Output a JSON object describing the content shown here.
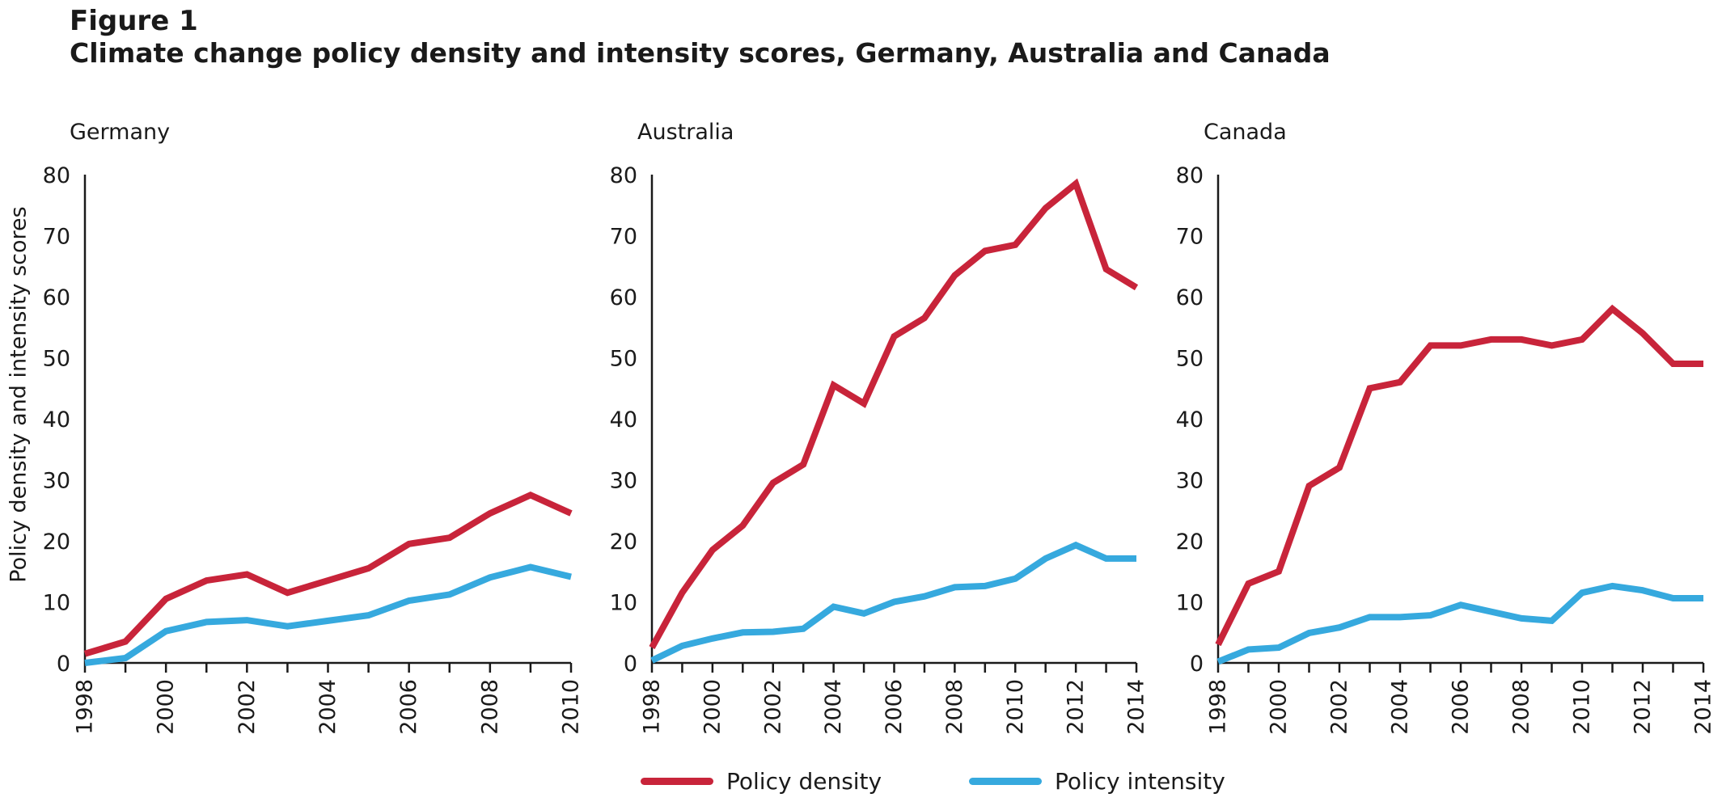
{
  "figure": {
    "label": "Figure 1",
    "title": "Climate change policy density and intensity scores, Germany, Australia and Canada"
  },
  "colors": {
    "density": "#c8243a",
    "intensity": "#36a9de",
    "axis": "#1a1a1a"
  },
  "chart_data": [
    {
      "type": "line",
      "title": "Germany",
      "ylabel": "Policy density and intensity scores",
      "xlabel": "",
      "x": [
        1998,
        1999,
        2000,
        2001,
        2002,
        2003,
        2004,
        2005,
        2006,
        2007,
        2008,
        2009,
        2010
      ],
      "xticks": [
        1998,
        2000,
        2002,
        2004,
        2006,
        2008,
        2010
      ],
      "ylim": [
        0,
        80
      ],
      "yticks": [
        0,
        10,
        20,
        30,
        40,
        50,
        60,
        70,
        80
      ],
      "series": [
        {
          "name": "Policy density",
          "values": [
            1.5,
            3.5,
            10.5,
            13.5,
            14.5,
            11.5,
            13.5,
            15.5,
            19.5,
            20.5,
            24.5,
            27.5,
            24.5
          ]
        },
        {
          "name": "Policy intensity",
          "values": [
            0,
            0.8,
            5.2,
            6.7,
            7.0,
            6.0,
            6.9,
            7.8,
            10.2,
            11.2,
            14.0,
            15.7,
            14.1
          ]
        }
      ]
    },
    {
      "type": "line",
      "title": "Australia",
      "xlabel": "",
      "x": [
        1998,
        1999,
        2000,
        2001,
        2002,
        2003,
        2004,
        2005,
        2006,
        2007,
        2008,
        2009,
        2010,
        2011,
        2012,
        2013,
        2014
      ],
      "xticks": [
        1998,
        2000,
        2002,
        2004,
        2006,
        2008,
        2010,
        2012,
        2014
      ],
      "ylim": [
        0,
        80
      ],
      "yticks": [
        0,
        10,
        20,
        30,
        40,
        50,
        60,
        70,
        80
      ],
      "series": [
        {
          "name": "Policy density",
          "values": [
            2.5,
            11.5,
            18.5,
            22.5,
            29.5,
            32.5,
            45.5,
            42.5,
            53.5,
            56.5,
            63.5,
            67.5,
            68.5,
            74.5,
            78.5,
            64.5,
            61.5
          ]
        },
        {
          "name": "Policy intensity",
          "values": [
            0.4,
            2.8,
            4.0,
            5.0,
            5.1,
            5.6,
            9.2,
            8.1,
            10.0,
            10.9,
            12.4,
            12.6,
            13.8,
            17.1,
            19.3,
            17.1,
            17.1
          ]
        }
      ]
    },
    {
      "type": "line",
      "title": "Canada",
      "xlabel": "",
      "x": [
        1998,
        1999,
        2000,
        2001,
        2002,
        2003,
        2004,
        2005,
        2006,
        2007,
        2008,
        2009,
        2010,
        2011,
        2012,
        2013,
        2014
      ],
      "xticks": [
        1998,
        2000,
        2002,
        2004,
        2006,
        2008,
        2010,
        2012,
        2014
      ],
      "ylim": [
        0,
        80
      ],
      "yticks": [
        0,
        10,
        20,
        30,
        40,
        50,
        60,
        70,
        80
      ],
      "series": [
        {
          "name": "Policy density",
          "values": [
            3,
            13,
            15,
            29,
            32,
            45,
            46,
            52,
            52,
            53,
            53,
            52,
            53,
            58,
            54,
            49,
            49
          ]
        },
        {
          "name": "Policy intensity",
          "values": [
            0.2,
            2.2,
            2.5,
            4.9,
            5.8,
            7.5,
            7.5,
            7.8,
            9.5,
            8.4,
            7.3,
            6.9,
            11.5,
            12.6,
            11.9,
            10.6,
            10.6
          ]
        }
      ]
    }
  ],
  "legend": [
    {
      "label": "Policy density",
      "color": "#c8243a"
    },
    {
      "label": "Policy intensity",
      "color": "#36a9de"
    }
  ]
}
